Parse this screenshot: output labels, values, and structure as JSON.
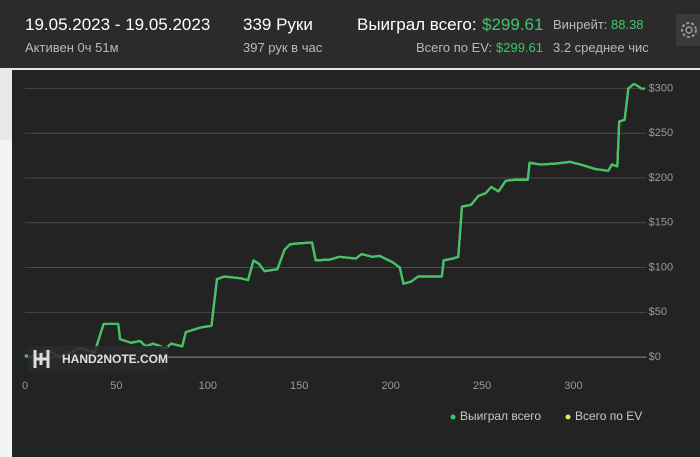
{
  "header": {
    "date_range": "19.05.2023 - 19.05.2023",
    "active": "Активен 0ч 51м",
    "hands": "339 Руки",
    "hands_per_hour": "397 рук в час",
    "won_label": "Выиграл всего:",
    "won_value": "$299.61",
    "ev_label": "Всего по EV:",
    "ev_value": "$299.61",
    "winrate_label": "Винрейт:",
    "winrate_value": "88.38",
    "avg_label": "3.2 среднее чис"
  },
  "chart_data": {
    "type": "line",
    "watermark": "HAND2NOTE.COM",
    "x": [
      0,
      3,
      8,
      13,
      17,
      19,
      25,
      30,
      38,
      43,
      51,
      52,
      58,
      63,
      66,
      70,
      77,
      80,
      86,
      88,
      96,
      102,
      105,
      109,
      118,
      122,
      125,
      128,
      131,
      138,
      142,
      145,
      150,
      157,
      159,
      167,
      172,
      181,
      184,
      190,
      194,
      201,
      205,
      207,
      211,
      215,
      222,
      228,
      229,
      234,
      237,
      239,
      244,
      248,
      252,
      255,
      259,
      263,
      268,
      275,
      276,
      282,
      290,
      298,
      304,
      312,
      319,
      321,
      324,
      325,
      328,
      330,
      333,
      335,
      337,
      339
    ],
    "series": [
      {
        "name": "Выиграл всего",
        "color": "#3ec46d",
        "values": [
          2,
          0,
          3,
          8,
          2,
          0,
          5,
          10,
          5,
          37,
          37,
          20,
          16,
          18,
          12,
          15,
          10,
          15,
          12,
          28,
          33,
          35,
          87,
          90,
          88,
          86,
          108,
          104,
          96,
          98,
          120,
          126,
          127,
          128,
          108,
          109,
          112,
          110,
          115,
          112,
          113,
          106,
          100,
          82,
          84,
          90,
          90,
          90,
          108,
          110,
          112,
          168,
          170,
          180,
          183,
          190,
          185,
          197,
          198,
          198,
          217,
          215,
          216,
          218,
          215,
          210,
          208,
          215,
          213,
          263,
          265,
          300,
          305,
          303,
          300,
          299.61
        ]
      },
      {
        "name": "Всего по EV",
        "color": "#e6e84a",
        "values": [
          2,
          0,
          3,
          8,
          2,
          0,
          5,
          10,
          5,
          37,
          37,
          20,
          16,
          18,
          12,
          15,
          10,
          15,
          12,
          28,
          33,
          35,
          87,
          90,
          88,
          86,
          108,
          104,
          96,
          98,
          120,
          126,
          127,
          128,
          108,
          109,
          112,
          110,
          115,
          112,
          113,
          106,
          100,
          82,
          84,
          90,
          90,
          90,
          108,
          110,
          112,
          168,
          170,
          180,
          183,
          190,
          185,
          197,
          198,
          198,
          217,
          215,
          216,
          218,
          215,
          210,
          208,
          215,
          213,
          263,
          265,
          300,
          305,
          303,
          300,
          299.61
        ]
      }
    ],
    "xlim": [
      0,
      340
    ],
    "xticks": [
      0,
      50,
      100,
      150,
      200,
      250,
      300
    ],
    "ylim": [
      -20,
      315
    ],
    "yticks": [
      {
        "value": 0,
        "label": "$0"
      },
      {
        "value": 50,
        "label": "$50"
      },
      {
        "value": 100,
        "label": "$100"
      },
      {
        "value": 150,
        "label": "$150"
      },
      {
        "value": 200,
        "label": "$200"
      },
      {
        "value": 250,
        "label": "$250"
      },
      {
        "value": 300,
        "label": "$300"
      }
    ],
    "grid": true
  }
}
